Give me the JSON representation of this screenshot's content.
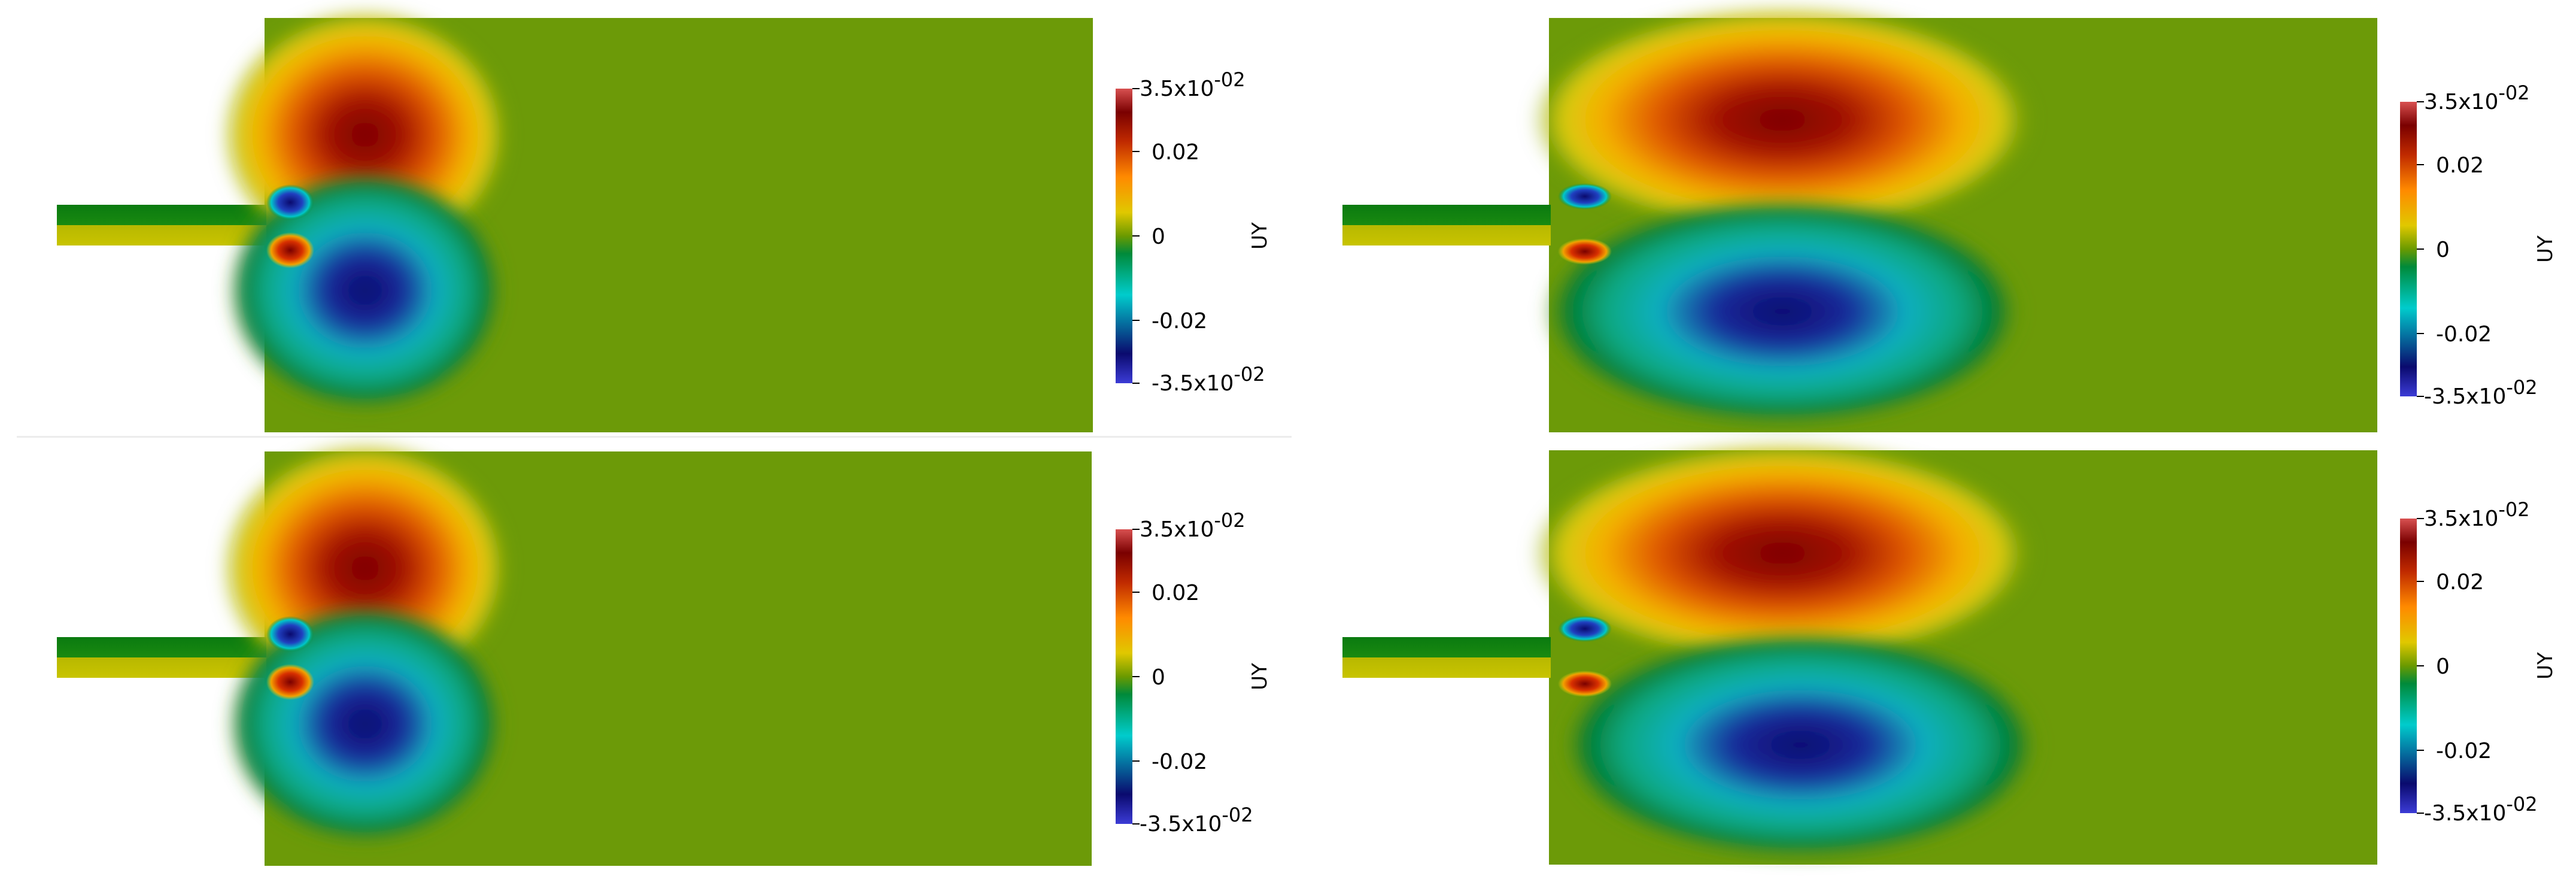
{
  "colors": {
    "colormap": [
      "#3b3bd6",
      "#0a0a6e",
      "#00cccc",
      "#008a3a",
      "#6a9a00",
      "#e0c800",
      "#ff8a00",
      "#c02a00",
      "#7a0000",
      "#d85050"
    ],
    "field_background": "#6c9a08"
  },
  "panels": [
    {
      "id": "top-left",
      "colorbar": {
        "title": "UY",
        "max_mantissa": "3.5x10",
        "max_exp": "-02",
        "t1": "0.02",
        "t0": "0",
        "t-1": "-0.02",
        "min_mantissa": "-3.5x10",
        "min_exp": "-02"
      }
    },
    {
      "id": "top-right",
      "colorbar": {
        "title": "UY",
        "max_mantissa": "3.5x10",
        "max_exp": "-02",
        "t1": "0.02",
        "t0": "0",
        "t-1": "-0.02",
        "min_mantissa": "-3.5x10",
        "min_exp": "-02"
      }
    },
    {
      "id": "bottom-left",
      "colorbar": {
        "title": "UY",
        "max_mantissa": "3.5x10",
        "max_exp": "-02",
        "t1": "0.02",
        "t0": "0",
        "t-1": "-0.02",
        "min_mantissa": "-3.5x10",
        "min_exp": "-02"
      }
    },
    {
      "id": "bottom-right",
      "colorbar": {
        "title": "UY",
        "max_mantissa": "3.5x10",
        "max_exp": "-02",
        "t1": "0.02",
        "t0": "0",
        "t-1": "-0.02",
        "min_mantissa": "-3.5x10",
        "min_exp": "-02"
      }
    }
  ]
}
